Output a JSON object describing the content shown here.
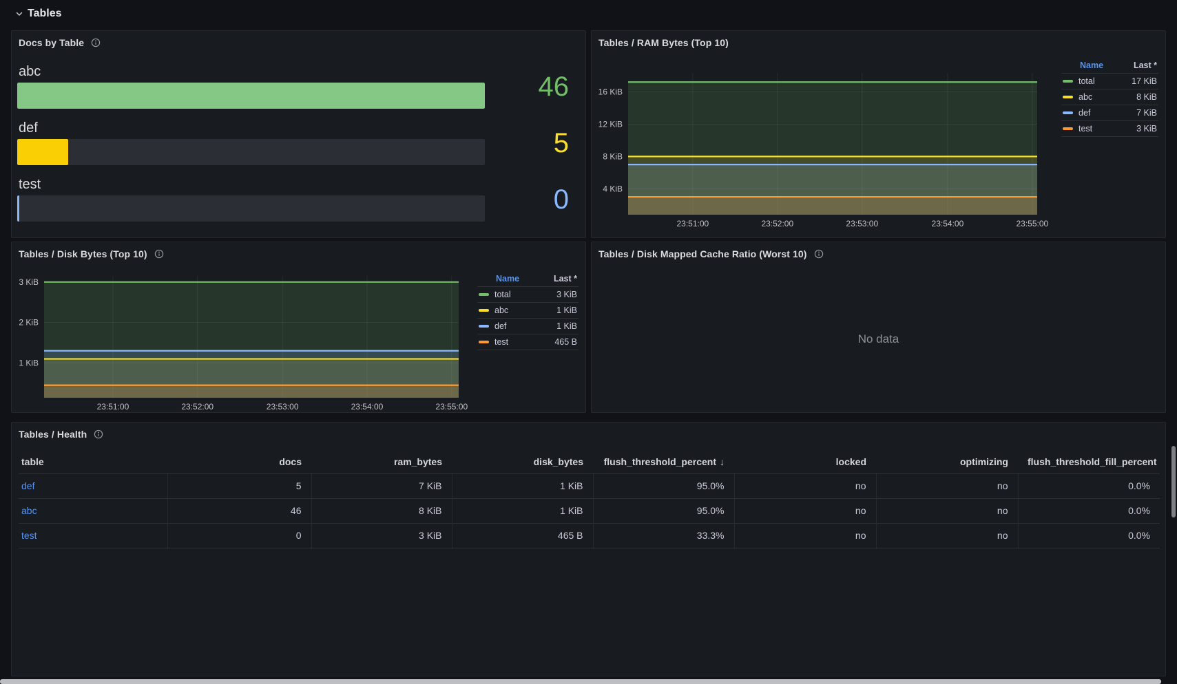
{
  "row_header": {
    "title": "Tables"
  },
  "panels": {
    "docs_by_table": {
      "title": "Docs by Table",
      "gauges": [
        {
          "label": "abc",
          "display": "46",
          "value": 46,
          "fraction": 1.0,
          "bar_color": "#85C885",
          "value_color": "#73BF69"
        },
        {
          "label": "def",
          "display": "5",
          "value": 5,
          "fraction": 0.1087,
          "bar_color": "#FAD005",
          "value_color": "#FADE2A"
        },
        {
          "label": "test",
          "display": "0",
          "value": 0,
          "fraction": 0.0,
          "bar_color": "#8AB8FF",
          "value_color": "#8AB8FF"
        }
      ]
    },
    "ram_bytes": {
      "title": "Tables / RAM Bytes (Top 10)"
    },
    "disk_bytes": {
      "title": "Tables / Disk Bytes (Top 10)"
    },
    "cache_ratio": {
      "title": "Tables / Disk Mapped Cache Ratio (Worst 10)",
      "no_data": "No data"
    },
    "health": {
      "title": "Tables / Health",
      "sort_arrow": "↓",
      "columns": [
        {
          "label": "table",
          "align": "left"
        },
        {
          "label": "docs"
        },
        {
          "label": "ram_bytes"
        },
        {
          "label": "disk_bytes"
        },
        {
          "label": "flush_threshold_percent",
          "sorted": "desc"
        },
        {
          "label": "locked"
        },
        {
          "label": "optimizing"
        },
        {
          "label": "flush_threshold_fill_percent"
        }
      ],
      "rows": [
        [
          "def",
          "5",
          "7 KiB",
          "1 KiB",
          "95.0%",
          "no",
          "no",
          "0.0%"
        ],
        [
          "abc",
          "46",
          "8 KiB",
          "1 KiB",
          "95.0%",
          "no",
          "no",
          "0.0%"
        ],
        [
          "test",
          "0",
          "3 KiB",
          "465 B",
          "33.3%",
          "no",
          "no",
          "0.0%"
        ]
      ]
    }
  },
  "chart_data": [
    {
      "type": "line",
      "title": "Tables / RAM Bytes (Top 10)",
      "x": [
        "23:51:00",
        "23:52:00",
        "23:53:00",
        "23:54:00",
        "23:55:00"
      ],
      "ylim": [
        0.8,
        18.33
      ],
      "yticks": [
        {
          "value": 4,
          "label": "4 KiB"
        },
        {
          "value": 8,
          "label": "8 KiB"
        },
        {
          "value": 12,
          "label": "12 KiB"
        },
        {
          "value": 16,
          "label": "16 KiB"
        }
      ],
      "grid": true,
      "legend": {
        "position": "right",
        "name_header": "Name",
        "last_header": "Last *"
      },
      "series": [
        {
          "name": "total",
          "color": "#73BF69",
          "values": [
            17.2,
            17.2,
            17.2,
            17.2,
            17.2
          ],
          "last": "17 KiB"
        },
        {
          "name": "abc",
          "color": "#FADE2A",
          "values": [
            8,
            8,
            8,
            8,
            8
          ],
          "last": "8 KiB"
        },
        {
          "name": "def",
          "color": "#8AB8FF",
          "values": [
            7,
            7,
            7,
            7,
            7
          ],
          "last": "7 KiB"
        },
        {
          "name": "test",
          "color": "#FF9830",
          "values": [
            3,
            3,
            3,
            3,
            3
          ],
          "last": "3 KiB"
        }
      ]
    },
    {
      "type": "line",
      "title": "Tables / Disk Bytes (Top 10)",
      "x": [
        "23:51:00",
        "23:52:00",
        "23:53:00",
        "23:54:00",
        "23:55:00"
      ],
      "ylim": [
        0.14,
        3.15
      ],
      "yticks": [
        {
          "value": 1,
          "label": "1 KiB"
        },
        {
          "value": 2,
          "label": "2 KiB"
        },
        {
          "value": 3,
          "label": "3 KiB"
        }
      ],
      "grid": true,
      "legend": {
        "position": "right",
        "name_header": "Name",
        "last_header": "Last *"
      },
      "series": [
        {
          "name": "total",
          "color": "#73BF69",
          "values": [
            3,
            3,
            3,
            3,
            3
          ],
          "last": "3 KiB"
        },
        {
          "name": "abc",
          "color": "#FADE2A",
          "values": [
            1.1,
            1.1,
            1.1,
            1.1,
            1.1
          ],
          "last": "1 KiB"
        },
        {
          "name": "def",
          "color": "#8AB8FF",
          "values": [
            1.3,
            1.3,
            1.3,
            1.3,
            1.3
          ],
          "last": "1 KiB"
        },
        {
          "name": "test",
          "color": "#FF9830",
          "values": [
            0.45,
            0.45,
            0.45,
            0.45,
            0.45
          ],
          "last": "465 B"
        }
      ]
    }
  ],
  "colors": {
    "page_bg": "#111217",
    "panel_bg": "#181B1F",
    "panel_border": "#25282E",
    "green": "#73BF69",
    "yellow": "#FADE2A",
    "blue": "#8AB8FF",
    "orange": "#FF9830",
    "link_blue": "#5794F2"
  }
}
